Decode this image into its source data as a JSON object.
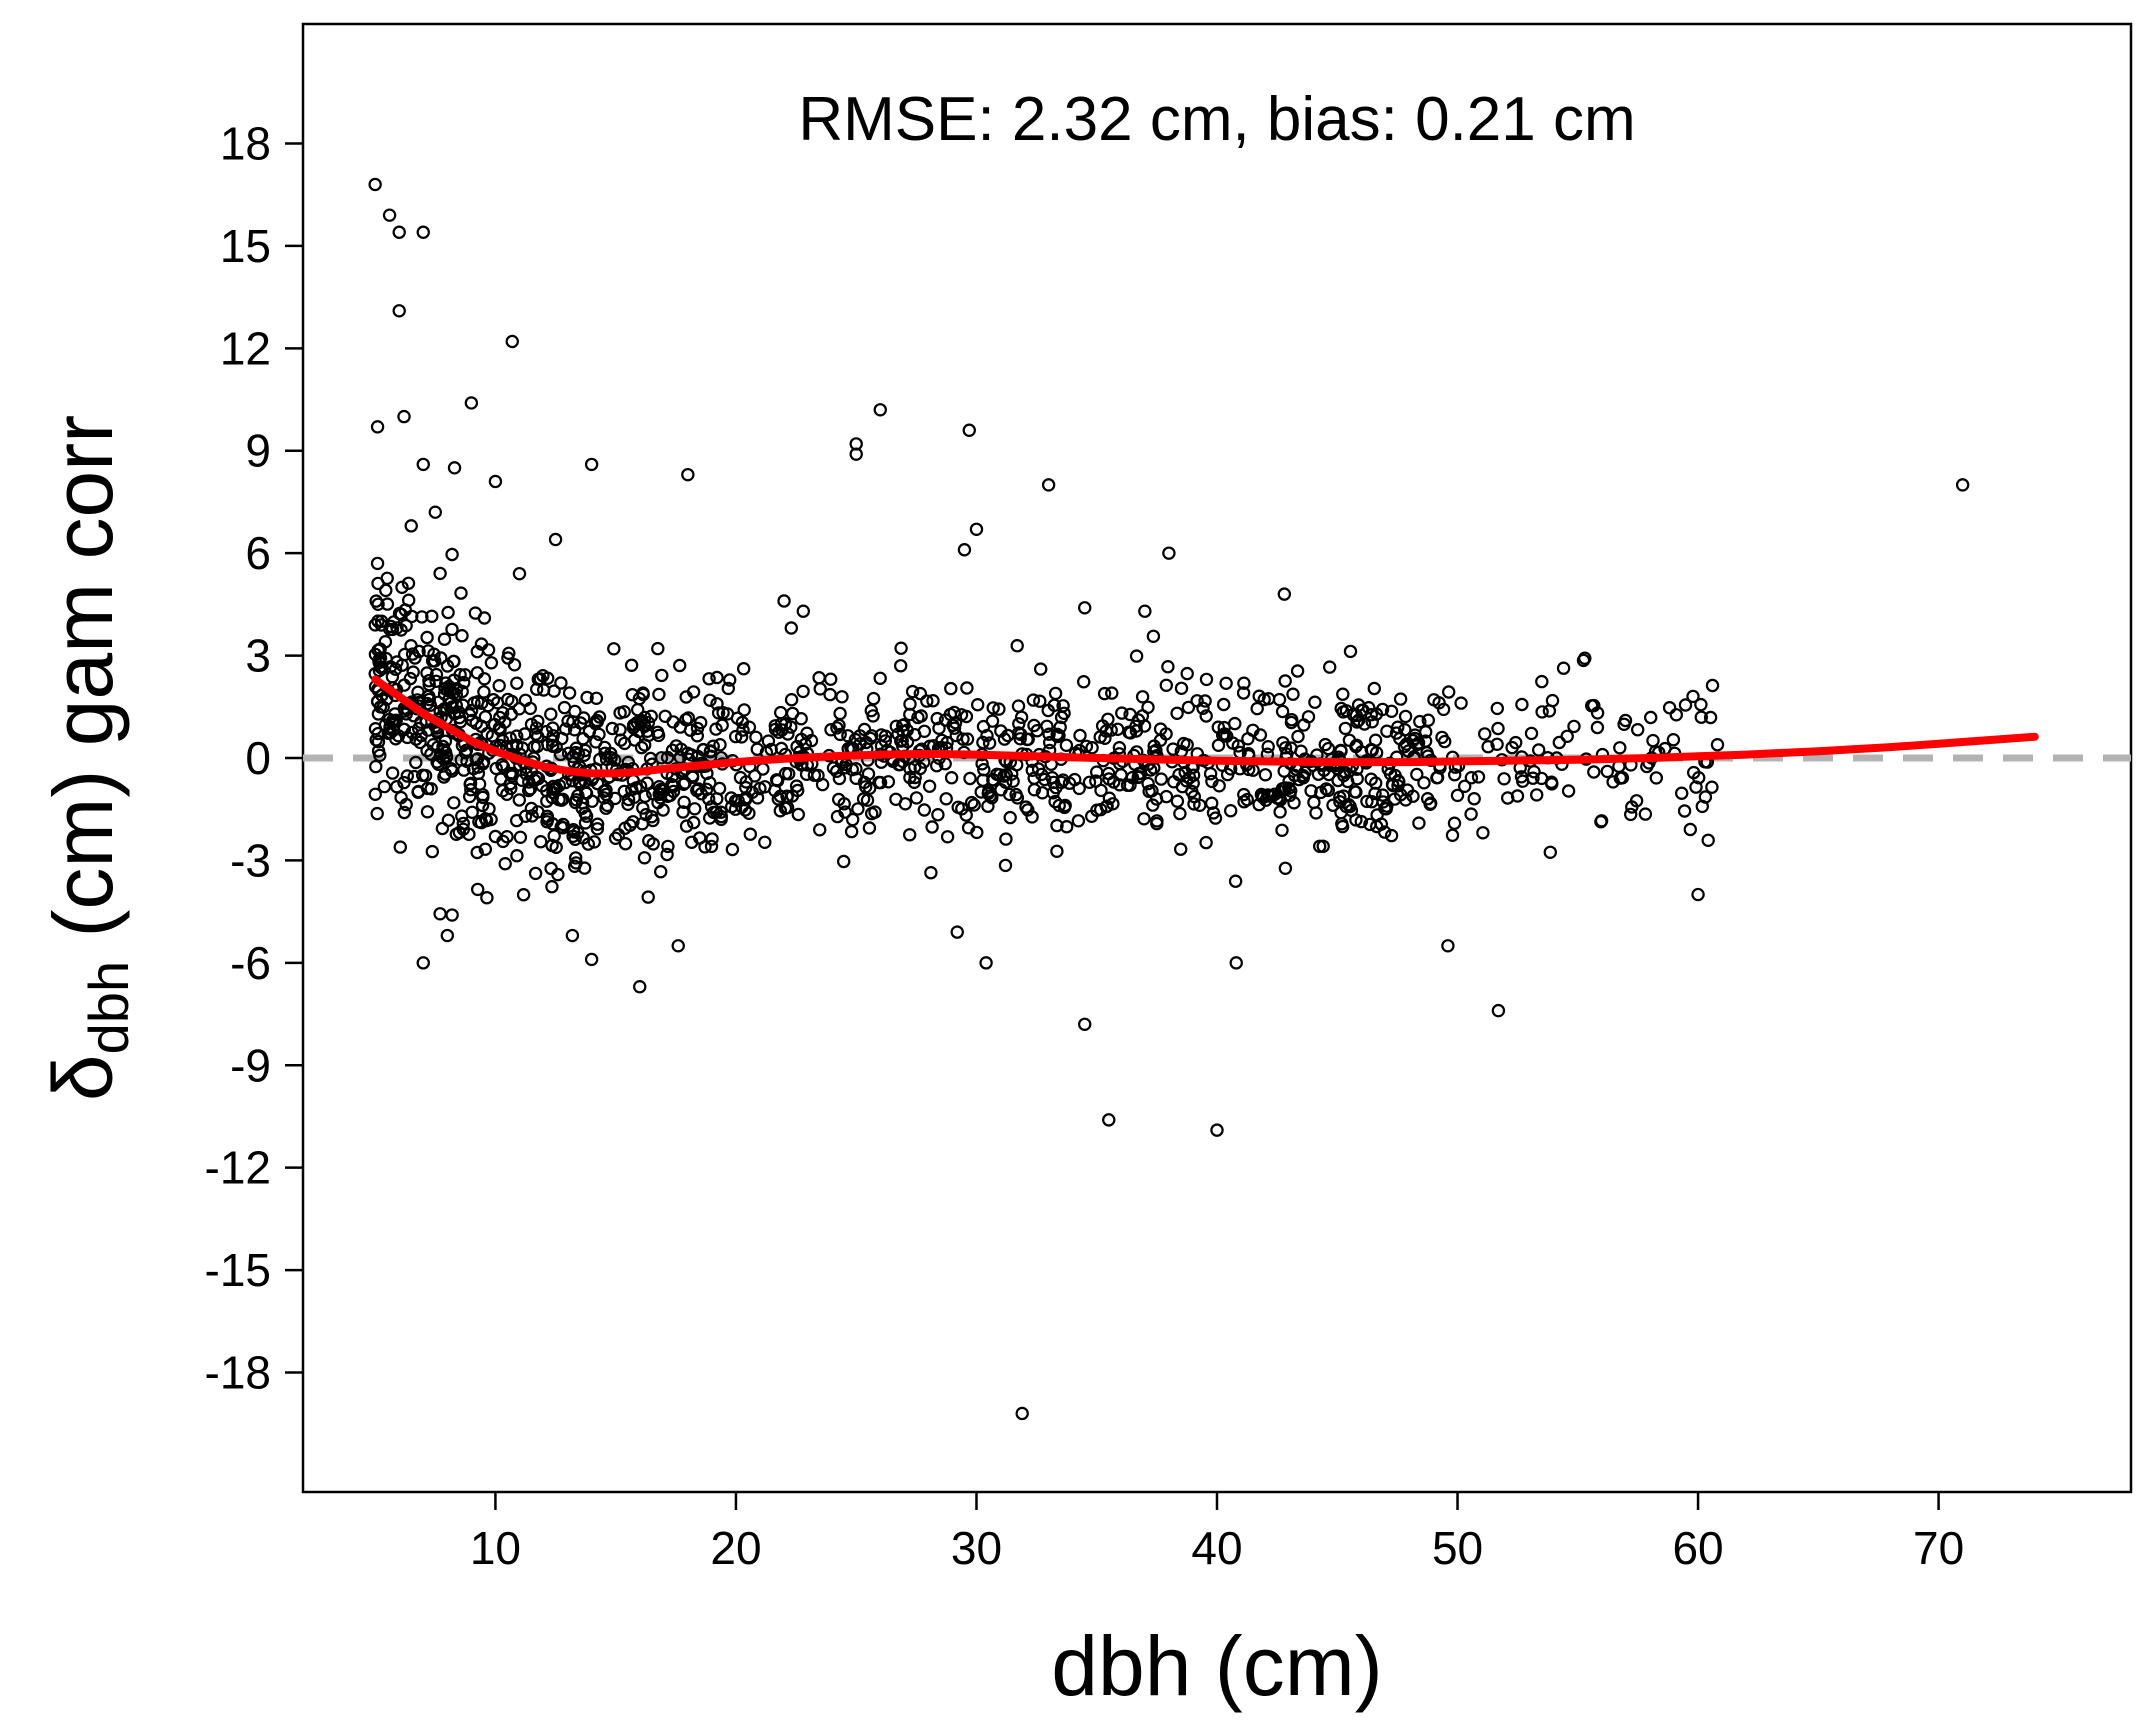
{
  "chart_data": {
    "type": "scatter",
    "annotation": "RMSE: 2.32 cm, bias: 0.21 cm",
    "xlabel": "dbh (cm)",
    "ylabel": {
      "symbol": "δ",
      "subscript": "dbh",
      "rest": " (cm)  gam corr"
    },
    "xlim": [
      2,
      78
    ],
    "ylim": [
      -21.5,
      21.5
    ],
    "x_ticks": [
      10,
      20,
      30,
      40,
      50,
      60,
      70
    ],
    "y_ticks": [
      18,
      15,
      12,
      9,
      6,
      3,
      0,
      -3,
      -6,
      -9,
      -12,
      -15,
      -18
    ],
    "grid": false,
    "colors": {
      "points": "#000000",
      "trend": "#ff0000",
      "reference": "#b3b3b3"
    },
    "reference_line": {
      "y": 0,
      "style": "dashed"
    },
    "trend_line": {
      "x": [
        5,
        6,
        7,
        8,
        9,
        10,
        11,
        12,
        13,
        14,
        15,
        16,
        17,
        18,
        20,
        22,
        24,
        26,
        28,
        30,
        32,
        35,
        38,
        40,
        42,
        45,
        48,
        50,
        52,
        55,
        58,
        60,
        62,
        65,
        68,
        70,
        72,
        74
      ],
      "y": [
        2.3,
        1.8,
        1.3,
        0.9,
        0.5,
        0.2,
        -0.05,
        -0.25,
        -0.38,
        -0.45,
        -0.45,
        -0.4,
        -0.32,
        -0.25,
        -0.12,
        -0.02,
        0.05,
        0.1,
        0.12,
        0.1,
        0.06,
        0.0,
        -0.05,
        -0.08,
        -0.1,
        -0.12,
        -0.12,
        -0.1,
        -0.08,
        -0.05,
        0.0,
        0.05,
        0.1,
        0.2,
        0.32,
        0.42,
        0.52,
        0.62
      ]
    },
    "highlighted_points": {
      "x": [
        5.0,
        5.6,
        6.0,
        7.0,
        6.0,
        10.7,
        5.1,
        9.0,
        6.2,
        7.0,
        8.3,
        10.0,
        14.0,
        18.0,
        26.0,
        25.0,
        29.7,
        25.0,
        33.0,
        30.0,
        29.5,
        38.0,
        71.0,
        5.1,
        7.5,
        6.5,
        12.5,
        11.0,
        31.9,
        35.5,
        40.0,
        34.5,
        51.7,
        16.0,
        7.0,
        8.0,
        8.2,
        14.0,
        13.2,
        17.6,
        30.4,
        29.2,
        40.8,
        49.6,
        60.0,
        42.8,
        34.5,
        37.0,
        22.0,
        22.8
      ],
      "y": [
        16.8,
        15.9,
        15.4,
        15.4,
        13.1,
        12.2,
        9.7,
        10.4,
        10.0,
        8.6,
        8.5,
        8.1,
        8.6,
        8.3,
        10.2,
        9.2,
        9.6,
        8.9,
        8.0,
        6.7,
        6.1,
        6.0,
        8.0,
        5.7,
        7.2,
        6.8,
        6.4,
        5.4,
        -19.2,
        -10.6,
        -10.9,
        -7.8,
        -7.4,
        -6.7,
        -6.0,
        -5.2,
        -4.6,
        -5.9,
        -5.2,
        -5.5,
        -6.0,
        -5.1,
        -6.0,
        -5.5,
        -4.0,
        4.8,
        4.4,
        4.3,
        4.6,
        4.3
      ]
    }
  }
}
